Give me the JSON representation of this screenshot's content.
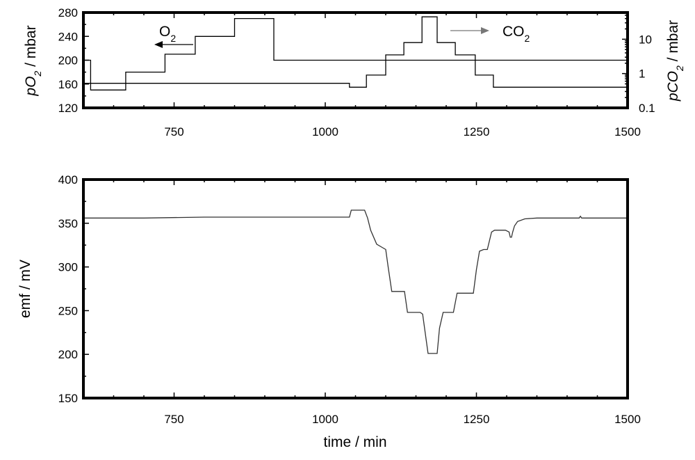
{
  "chart_data": [
    {
      "type": "line",
      "xlim": [
        600,
        1500
      ],
      "x_ticks": [
        750,
        1000,
        1250,
        1500
      ],
      "x_tick_labels": [
        "750",
        "1000",
        "1250",
        "1500"
      ],
      "ylim": [
        120,
        280
      ],
      "y_ticks": [
        120,
        160,
        200,
        240,
        280
      ],
      "y_tick_labels": [
        "120",
        "160",
        "200",
        "240",
        "280"
      ],
      "y_label": "pO2 / mbar",
      "y_label_parts": {
        "pre": "p",
        "main": "O",
        "sub": "2",
        "post": " / mbar"
      },
      "y2_scale": "log",
      "y2lim": [
        0.1,
        60
      ],
      "y2_ticks": [
        0.1,
        1,
        10
      ],
      "y2_tick_labels": [
        "0.1",
        "1",
        "10"
      ],
      "y2_label": "pCO2 / mbar",
      "y2_label_parts": {
        "pre": "p",
        "main": "CO",
        "sub": "2",
        "post": " / mbar"
      },
      "series": [
        {
          "name": "O2",
          "label_parts": {
            "main": "O",
            "sub": "2"
          },
          "axis": "left",
          "step": true,
          "x": [
            600,
            612,
            612,
            670,
            670,
            735,
            735,
            785,
            785,
            850,
            850,
            915,
            915,
            1500
          ],
          "y": [
            200,
            200,
            150,
            150,
            180,
            180,
            210,
            210,
            240,
            240,
            270,
            270,
            200,
            200
          ]
        },
        {
          "name": "CO2",
          "label_parts": {
            "main": "CO",
            "sub": "2"
          },
          "axis": "right",
          "step": true,
          "x": [
            600,
            1040,
            1040,
            1068,
            1068,
            1100,
            1100,
            1130,
            1130,
            1160,
            1160,
            1185,
            1185,
            1215,
            1215,
            1248,
            1248,
            1278,
            1278,
            1500
          ],
          "y": [
            0.52,
            0.52,
            0.4,
            0.4,
            0.9,
            0.9,
            3.5,
            3.5,
            8,
            8,
            45,
            45,
            8,
            8,
            3.5,
            3.5,
            0.9,
            0.9,
            0.4,
            0.4
          ]
        }
      ]
    },
    {
      "type": "line",
      "xlim": [
        600,
        1500
      ],
      "x_ticks": [
        750,
        1000,
        1250,
        1500
      ],
      "x_tick_labels": [
        "750",
        "1000",
        "1250",
        "1500"
      ],
      "ylim": [
        150,
        400
      ],
      "y_ticks": [
        150,
        200,
        250,
        300,
        350,
        400
      ],
      "y_tick_labels": [
        "150",
        "200",
        "250",
        "300",
        "350",
        "400"
      ],
      "y_label": "emf / mV",
      "x_label": "time / min",
      "series": [
        {
          "name": "emf",
          "x": [
            600,
            700,
            800,
            900,
            1000,
            1040,
            1043,
            1065,
            1070,
            1075,
            1085,
            1095,
            1100,
            1104,
            1110,
            1125,
            1131,
            1136,
            1150,
            1157,
            1161,
            1170,
            1180,
            1185,
            1189,
            1195,
            1205,
            1212,
            1218,
            1230,
            1245,
            1250,
            1255,
            1262,
            1268,
            1275,
            1280,
            1290,
            1298,
            1304,
            1306,
            1308,
            1310,
            1313,
            1318,
            1330,
            1350,
            1400,
            1420,
            1422,
            1424,
            1450,
            1500
          ],
          "y": [
            356,
            356,
            357,
            357,
            357,
            357,
            365,
            365,
            356,
            342,
            326,
            322,
            320,
            300,
            272,
            272,
            272,
            248,
            248,
            248,
            246,
            201,
            201,
            201,
            230,
            248,
            248,
            248,
            270,
            270,
            270,
            297,
            318,
            320,
            320,
            340,
            342,
            342,
            342,
            340,
            334,
            334,
            340,
            347,
            352,
            355,
            356,
            356,
            356,
            358,
            356,
            356,
            356
          ]
        }
      ]
    }
  ]
}
